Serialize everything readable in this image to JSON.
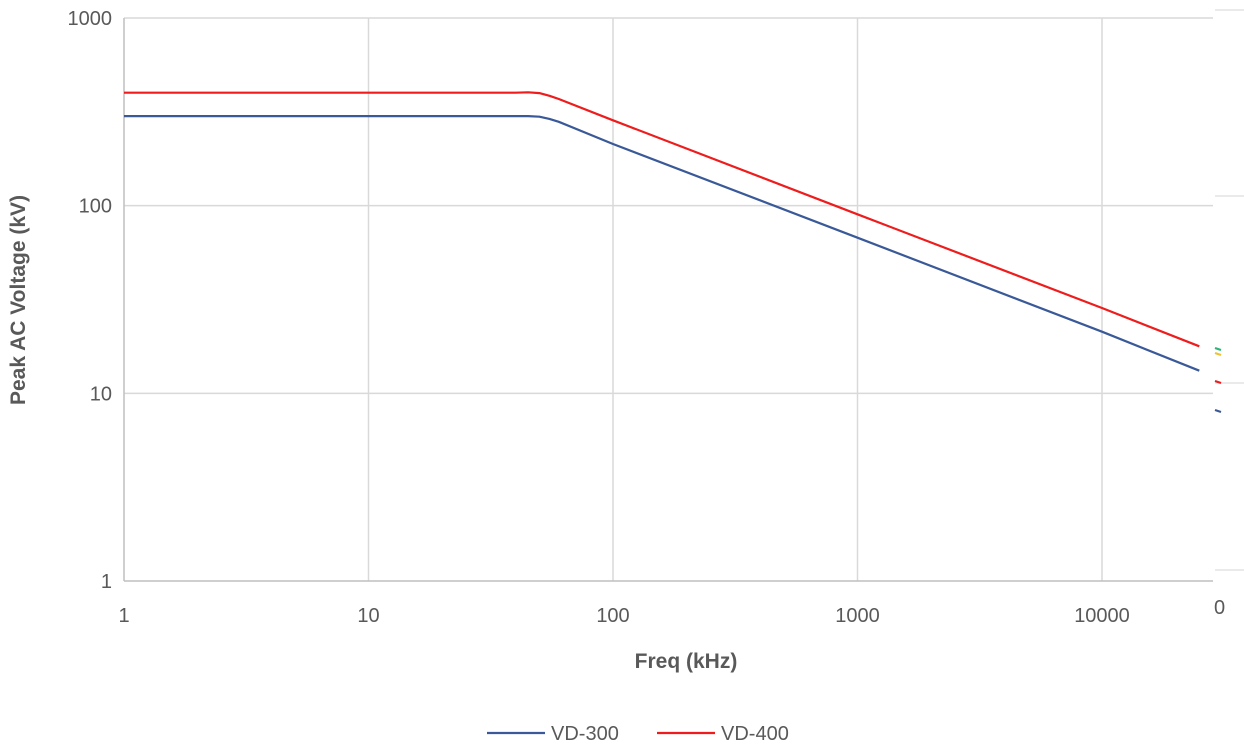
{
  "chart_data": {
    "type": "line",
    "title": "",
    "xlabel": "Freq (kHz)",
    "ylabel": "Peak AC Voltage (kV)",
    "x_scale": "log",
    "y_scale": "log",
    "xlim": [
      1,
      25000
    ],
    "ylim": [
      1,
      1000
    ],
    "x_ticks": [
      "1",
      "10",
      "100",
      "1000",
      "10000"
    ],
    "y_ticks": [
      "1",
      "10",
      "100",
      "1000"
    ],
    "grid": true,
    "legend_position": "bottom",
    "series": [
      {
        "name": "VD-300",
        "color": "#3a5998",
        "x": [
          1,
          40,
          45,
          50,
          55,
          60,
          100,
          1000,
          10000,
          25000
        ],
        "y": [
          300,
          300,
          300,
          298,
          290,
          280,
          213,
          67.5,
          21.3,
          13.2
        ]
      },
      {
        "name": "VD-400",
        "color": "#ee1c1c",
        "x": [
          1,
          40,
          45,
          50,
          55,
          60,
          100,
          1000,
          10000,
          25000
        ],
        "y": [
          400,
          400,
          402,
          398,
          385,
          370,
          285,
          90,
          28.5,
          17.8
        ]
      }
    ],
    "clipped_edge_text": "0",
    "clipped_edge_marks": [
      "#2bb673",
      "#f2c12e",
      "#ee1c1c",
      "#3a5998"
    ]
  }
}
